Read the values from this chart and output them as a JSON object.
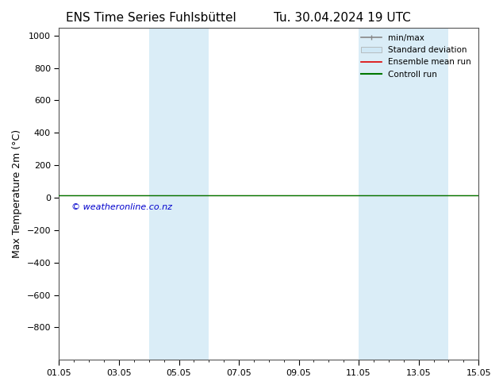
{
  "title_left": "ENS Time Series Fuhlsbüttel",
  "title_right": "Tu. 30.04.2024 19 UTC",
  "ylabel": "Max Temperature 2m (°C)",
  "ylim_top": -1000,
  "ylim_bottom": 1050,
  "yticks": [
    -800,
    -600,
    -400,
    -200,
    0,
    200,
    400,
    600,
    800,
    1000
  ],
  "x_tick_labels": [
    "01.05",
    "03.05",
    "05.05",
    "07.05",
    "09.05",
    "11.05",
    "13.05",
    "15.05"
  ],
  "x_tick_positions": [
    0,
    2,
    4,
    6,
    8,
    10,
    12,
    14
  ],
  "xlim": [
    0,
    14
  ],
  "shaded_regions": [
    {
      "x_start": 3.0,
      "x_end": 4.0,
      "color": "#daedf7"
    },
    {
      "x_start": 4.0,
      "x_end": 5.0,
      "color": "#daedf7"
    },
    {
      "x_start": 10.0,
      "x_end": 11.0,
      "color": "#daedf7"
    },
    {
      "x_start": 11.0,
      "x_end": 12.0,
      "color": "#daedf7"
    },
    {
      "x_start": 12.0,
      "x_end": 13.0,
      "color": "#daedf7"
    }
  ],
  "line_y": 15,
  "line_color_control": "#007700",
  "line_color_ensemble": "#dd0000",
  "watermark": "© weatheronline.co.nz",
  "watermark_color": "#0000cc",
  "legend_labels": [
    "min/max",
    "Standard deviation",
    "Ensemble mean run",
    "Controll run"
  ],
  "legend_colors_line": [
    "#888888",
    "#cccccc",
    "#dd0000",
    "#007700"
  ],
  "bg_color": "#ffffff",
  "title_fontsize": 11,
  "ylabel_fontsize": 9,
  "tick_fontsize": 8,
  "legend_fontsize": 7.5
}
